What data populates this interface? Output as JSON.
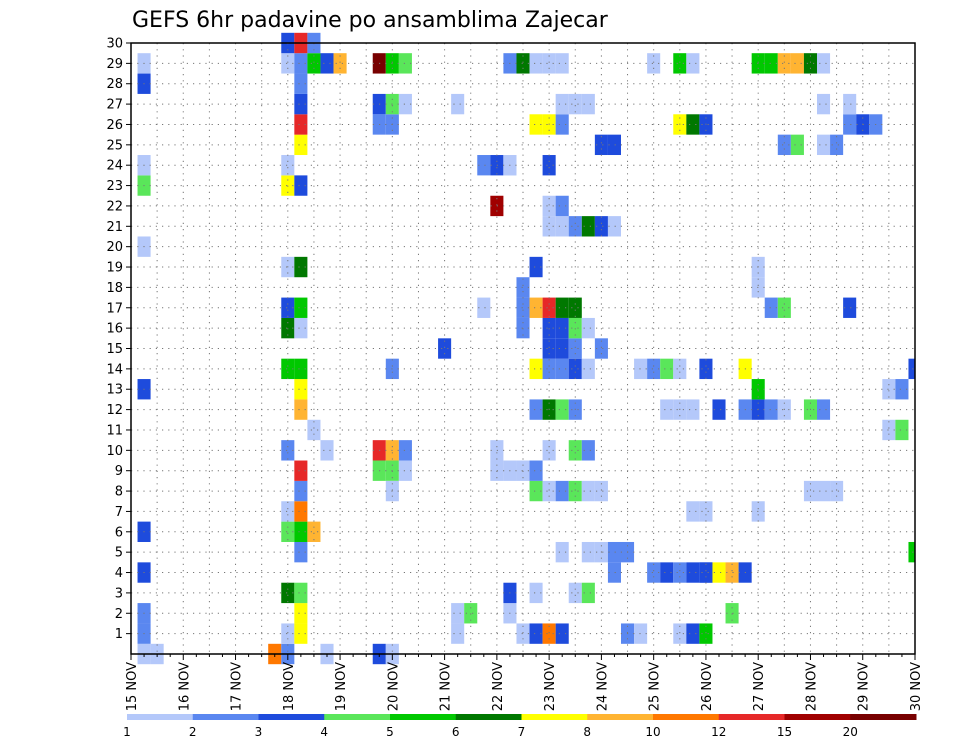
{
  "chart_data": {
    "type": "heatmap",
    "title": "GEFS 6hr padavine po ansamblima Zajecar",
    "xlabel": "",
    "ylabel": "",
    "x_range": [
      0,
      60
    ],
    "y_range": [
      0,
      30
    ],
    "grid": true,
    "x_ticks": [
      {
        "pos": 0,
        "label": "15 NOV"
      },
      {
        "pos": 4,
        "label": "16 NOV"
      },
      {
        "pos": 8,
        "label": "17 NOV"
      },
      {
        "pos": 12,
        "label": "18 NOV"
      },
      {
        "pos": 16,
        "label": "19 NOV"
      },
      {
        "pos": 20,
        "label": "20 NOV"
      },
      {
        "pos": 24,
        "label": "21 NOV"
      },
      {
        "pos": 28,
        "label": "22 NOV"
      },
      {
        "pos": 32,
        "label": "23 NOV"
      },
      {
        "pos": 36,
        "label": "24 NOV"
      },
      {
        "pos": 40,
        "label": "25 NOV"
      },
      {
        "pos": 44,
        "label": "26 NOV"
      },
      {
        "pos": 48,
        "label": "27 NOV"
      },
      {
        "pos": 52,
        "label": "28 NOV"
      },
      {
        "pos": 56,
        "label": "29 NOV"
      },
      {
        "pos": 60,
        "label": "30 NOV"
      }
    ],
    "y_ticks": [
      "1",
      "2",
      "3",
      "4",
      "5",
      "6",
      "7",
      "8",
      "9",
      "10",
      "11",
      "12",
      "13",
      "14",
      "15",
      "16",
      "17",
      "18",
      "19",
      "20",
      "21",
      "22",
      "23",
      "24",
      "25",
      "26",
      "27",
      "28",
      "29",
      "30"
    ],
    "legend": {
      "labels": [
        "1",
        "2",
        "3",
        "4",
        "5",
        "6",
        "7",
        "8",
        "10",
        "12",
        "15",
        "20"
      ],
      "colors": [
        "#b4c8fa",
        "#5a87f0",
        "#1e4bdc",
        "#5ae65a",
        "#00c800",
        "#007800",
        "#ffff00",
        "#ffb432",
        "#ff7800",
        "#e62828",
        "#a00000",
        "#780000"
      ]
    },
    "cells": [
      [
        1,
        0,
        1
      ],
      [
        2,
        0,
        1
      ],
      [
        11,
        0,
        9
      ],
      [
        12,
        0,
        2
      ],
      [
        15,
        0,
        1
      ],
      [
        1,
        1,
        2
      ],
      [
        1,
        2,
        2
      ],
      [
        1,
        4,
        3
      ],
      [
        1,
        6,
        3
      ],
      [
        1,
        13,
        3
      ],
      [
        1,
        20,
        1
      ],
      [
        1,
        23,
        4
      ],
      [
        1,
        24,
        1
      ],
      [
        1,
        28,
        3
      ],
      [
        1,
        29,
        1
      ],
      [
        12,
        1,
        1
      ],
      [
        12,
        3,
        6
      ],
      [
        12,
        6,
        4
      ],
      [
        12,
        7,
        1
      ],
      [
        12,
        10,
        2
      ],
      [
        12,
        14,
        5
      ],
      [
        12,
        16,
        6
      ],
      [
        12,
        17,
        3
      ],
      [
        12,
        19,
        1
      ],
      [
        12,
        23,
        7
      ],
      [
        12,
        24,
        1
      ],
      [
        12,
        29,
        1
      ],
      [
        12,
        30,
        3
      ],
      [
        13,
        1,
        7
      ],
      [
        13,
        2,
        7
      ],
      [
        13,
        3,
        4
      ],
      [
        13,
        5,
        2
      ],
      [
        13,
        6,
        5
      ],
      [
        13,
        7,
        9
      ],
      [
        13,
        8,
        2
      ],
      [
        13,
        9,
        10
      ],
      [
        13,
        12,
        8
      ],
      [
        13,
        13,
        7
      ],
      [
        13,
        14,
        5
      ],
      [
        13,
        16,
        1
      ],
      [
        13,
        17,
        5
      ],
      [
        13,
        19,
        6
      ],
      [
        13,
        23,
        3
      ],
      [
        13,
        25,
        7
      ],
      [
        13,
        26,
        10
      ],
      [
        13,
        27,
        3
      ],
      [
        13,
        28,
        2
      ],
      [
        13,
        29,
        2
      ],
      [
        13,
        30,
        10
      ],
      [
        14,
        6,
        8
      ],
      [
        14,
        11,
        1
      ],
      [
        14,
        29,
        5
      ],
      [
        14,
        30,
        2
      ],
      [
        15,
        29,
        3
      ],
      [
        16,
        29,
        8
      ],
      [
        15,
        10,
        1
      ],
      [
        19,
        0,
        3
      ],
      [
        19,
        10,
        10
      ],
      [
        19,
        9,
        4
      ],
      [
        19,
        26,
        2
      ],
      [
        19,
        27,
        3
      ],
      [
        19,
        29,
        12
      ],
      [
        20,
        10,
        8
      ],
      [
        20,
        9,
        4
      ],
      [
        20,
        26,
        2
      ],
      [
        20,
        29,
        5
      ],
      [
        20,
        27,
        4
      ],
      [
        20,
        14,
        2
      ],
      [
        20,
        8,
        1
      ],
      [
        20,
        0,
        1
      ],
      [
        21,
        10,
        2
      ],
      [
        21,
        9,
        1
      ],
      [
        21,
        27,
        1
      ],
      [
        21,
        29,
        4
      ],
      [
        25,
        27,
        1
      ],
      [
        24,
        15,
        3
      ],
      [
        25,
        1,
        1
      ],
      [
        25,
        2,
        1
      ],
      [
        26,
        2,
        4
      ],
      [
        27,
        17,
        1
      ],
      [
        27,
        24,
        2
      ],
      [
        28,
        24,
        3
      ],
      [
        28,
        10,
        1
      ],
      [
        28,
        9,
        1
      ],
      [
        29,
        24,
        1
      ],
      [
        28,
        22,
        11
      ],
      [
        29,
        2,
        1
      ],
      [
        29,
        3,
        3
      ],
      [
        29,
        29,
        2
      ],
      [
        30,
        29,
        6
      ],
      [
        29,
        9,
        1
      ],
      [
        30,
        9,
        1
      ],
      [
        29,
        24,
        1
      ],
      [
        30,
        1,
        1
      ],
      [
        30,
        17,
        2
      ],
      [
        30,
        18,
        2
      ],
      [
        30,
        16,
        2
      ],
      [
        31,
        1,
        3
      ],
      [
        31,
        3,
        1
      ],
      [
        31,
        8,
        4
      ],
      [
        31,
        12,
        2
      ],
      [
        31,
        14,
        7
      ],
      [
        31,
        17,
        8
      ],
      [
        31,
        19,
        3
      ],
      [
        31,
        26,
        7
      ],
      [
        31,
        29,
        1
      ],
      [
        31,
        9,
        2
      ],
      [
        32,
        1,
        9
      ],
      [
        32,
        8,
        1
      ],
      [
        32,
        10,
        1
      ],
      [
        32,
        12,
        6
      ],
      [
        32,
        14,
        2
      ],
      [
        32,
        15,
        3
      ],
      [
        32,
        16,
        3
      ],
      [
        32,
        17,
        10
      ],
      [
        32,
        21,
        1
      ],
      [
        32,
        22,
        1
      ],
      [
        32,
        24,
        3
      ],
      [
        32,
        26,
        7
      ],
      [
        32,
        29,
        1
      ],
      [
        33,
        1,
        3
      ],
      [
        33,
        5,
        1
      ],
      [
        33,
        8,
        2
      ],
      [
        33,
        12,
        4
      ],
      [
        33,
        14,
        2
      ],
      [
        33,
        15,
        3
      ],
      [
        33,
        16,
        3
      ],
      [
        33,
        17,
        6
      ],
      [
        33,
        21,
        1
      ],
      [
        33,
        22,
        2
      ],
      [
        33,
        26,
        2
      ],
      [
        33,
        27,
        1
      ],
      [
        33,
        29,
        1
      ],
      [
        34,
        3,
        1
      ],
      [
        34,
        8,
        4
      ],
      [
        34,
        10,
        4
      ],
      [
        34,
        12,
        2
      ],
      [
        34,
        14,
        3
      ],
      [
        34,
        15,
        2
      ],
      [
        34,
        16,
        4
      ],
      [
        34,
        17,
        6
      ],
      [
        34,
        21,
        2
      ],
      [
        34,
        27,
        1
      ],
      [
        35,
        3,
        4
      ],
      [
        35,
        5,
        1
      ],
      [
        35,
        8,
        1
      ],
      [
        35,
        10,
        2
      ],
      [
        35,
        14,
        1
      ],
      [
        35,
        16,
        1
      ],
      [
        35,
        21,
        6
      ],
      [
        35,
        27,
        1
      ],
      [
        36,
        5,
        1
      ],
      [
        36,
        8,
        1
      ],
      [
        36,
        15,
        2
      ],
      [
        36,
        21,
        3
      ],
      [
        36,
        25,
        3
      ],
      [
        37,
        21,
        1
      ],
      [
        37,
        4,
        2
      ],
      [
        37,
        5,
        2
      ],
      [
        37,
        25,
        3
      ],
      [
        38,
        5,
        2
      ],
      [
        38,
        1,
        2
      ],
      [
        39,
        1,
        1
      ],
      [
        39,
        14,
        1
      ],
      [
        40,
        14,
        2
      ],
      [
        41,
        14,
        4
      ],
      [
        40,
        29,
        1
      ],
      [
        40,
        4,
        2
      ],
      [
        41,
        4,
        3
      ],
      [
        41,
        12,
        1
      ],
      [
        42,
        12,
        1
      ],
      [
        43,
        12,
        1
      ],
      [
        42,
        4,
        2
      ],
      [
        43,
        4,
        3
      ],
      [
        42,
        1,
        1
      ],
      [
        43,
        1,
        3
      ],
      [
        44,
        1,
        5
      ],
      [
        42,
        14,
        1
      ],
      [
        42,
        26,
        7
      ],
      [
        43,
        26,
        6
      ],
      [
        44,
        26,
        3
      ],
      [
        42,
        29,
        5
      ],
      [
        43,
        29,
        1
      ],
      [
        44,
        14,
        3
      ],
      [
        44,
        4,
        2
      ],
      [
        44,
        7,
        1
      ],
      [
        43,
        7,
        1
      ],
      [
        44,
        4,
        3
      ],
      [
        45,
        4,
        7
      ],
      [
        46,
        4,
        8
      ],
      [
        47,
        4,
        3
      ],
      [
        45,
        12,
        3
      ],
      [
        46,
        2,
        4
      ],
      [
        47,
        14,
        7
      ],
      [
        47,
        12,
        2
      ],
      [
        48,
        12,
        3
      ],
      [
        48,
        13,
        5
      ],
      [
        48,
        18,
        1
      ],
      [
        48,
        19,
        1
      ],
      [
        48,
        7,
        1
      ],
      [
        48,
        29,
        5
      ],
      [
        49,
        29,
        5
      ],
      [
        49,
        12,
        2
      ],
      [
        50,
        12,
        1
      ],
      [
        50,
        29,
        8
      ],
      [
        51,
        29,
        8
      ],
      [
        49,
        17,
        2
      ],
      [
        50,
        17,
        4
      ],
      [
        50,
        25,
        2
      ],
      [
        51,
        25,
        4
      ],
      [
        52,
        29,
        6
      ],
      [
        52,
        12,
        4
      ],
      [
        52,
        8,
        1
      ],
      [
        53,
        8,
        1
      ],
      [
        54,
        8,
        1
      ],
      [
        53,
        12,
        2
      ],
      [
        53,
        25,
        1
      ],
      [
        54,
        25,
        2
      ],
      [
        53,
        27,
        1
      ],
      [
        53,
        29,
        1
      ],
      [
        55,
        26,
        2
      ],
      [
        55,
        27,
        1
      ],
      [
        56,
        26,
        3
      ],
      [
        57,
        26,
        2
      ],
      [
        55,
        17,
        3
      ],
      [
        58,
        13,
        1
      ],
      [
        58,
        11,
        1
      ],
      [
        59,
        11,
        4
      ],
      [
        59,
        13,
        2
      ],
      [
        60,
        14,
        3
      ],
      [
        60,
        5,
        5
      ]
    ]
  }
}
